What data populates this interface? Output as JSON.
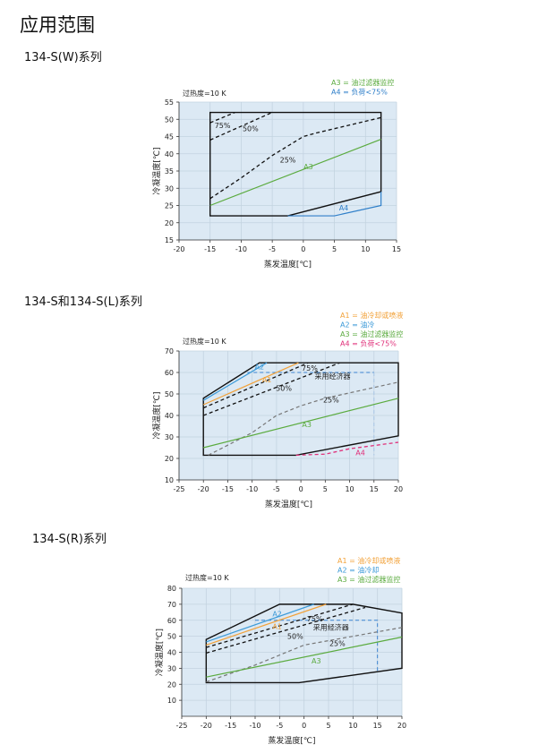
{
  "page_title": "应用范围",
  "sections": [
    {
      "heading": "134-S(W)系列"
    },
    {
      "heading": "134-S和134-S(L)系列"
    },
    {
      "heading": "134-S(R)系列"
    }
  ],
  "colors": {
    "plot_bg": "#dce9f4",
    "envelope": "#111111",
    "A1": "#f2a23a",
    "A2": "#3c9ad8",
    "A3": "#5bab3f",
    "A4_W": "#2f7fc9",
    "A4_L": "#e0307a",
    "dashed_black": "#111111",
    "dashed_gray": "#777777",
    "economizer": "#3c84d0"
  },
  "chart_data": [
    {
      "type": "line",
      "note": "过热度=10 K",
      "xlabel": "蒸发温度[℃]",
      "ylabel": "冷凝温度[℃]",
      "xlim": [
        -20,
        15
      ],
      "ylim": [
        15,
        55
      ],
      "xticks": [
        -20,
        -15,
        -10,
        -5,
        0,
        5,
        10,
        15
      ],
      "yticks": [
        15,
        20,
        25,
        30,
        35,
        40,
        45,
        50,
        55
      ],
      "grid": true,
      "legend_position": "top-right",
      "legend": [
        {
          "text": "A3 = 油过滤器监控",
          "color": "#5bab3f"
        },
        {
          "text": "A4 = 负荷<75%",
          "color": "#2f7fc9"
        }
      ],
      "series": [
        {
          "id": "envelope",
          "style": "envelope",
          "closed": true,
          "points": [
            [
              -15,
              22
            ],
            [
              -15,
              52
            ],
            [
              12.5,
              52
            ],
            [
              12.5,
              29
            ],
            [
              -2.5,
              22
            ]
          ]
        },
        {
          "id": "A4",
          "style": "A4_W",
          "points": [
            [
              -2.5,
              22
            ],
            [
              5,
              22
            ],
            [
              12.5,
              25
            ],
            [
              12.5,
              29
            ]
          ]
        },
        {
          "id": "A3",
          "style": "A3",
          "points": [
            [
              -15,
              25
            ],
            [
              12.5,
              44.2
            ]
          ]
        },
        {
          "id": "25%",
          "style": "dashed_black",
          "points": [
            [
              -15,
              27
            ],
            [
              -10,
              33
            ],
            [
              -5,
              39.5
            ],
            [
              0,
              45
            ],
            [
              2,
              46
            ],
            [
              12.5,
              50.5
            ]
          ]
        },
        {
          "id": "50%",
          "style": "dashed_black",
          "points": [
            [
              -15,
              44
            ],
            [
              -5,
              52
            ]
          ]
        },
        {
          "id": "75%",
          "style": "dashed_black",
          "points": [
            [
              -15,
              49
            ],
            [
              -11,
              52
            ]
          ]
        }
      ],
      "annotations": [
        {
          "text": "75%",
          "x": -13,
          "y": 47.5,
          "color": "#222222"
        },
        {
          "text": "50%",
          "x": -8.5,
          "y": 46.5,
          "color": "#222222"
        },
        {
          "text": "25%",
          "x": -2.5,
          "y": 37.5,
          "color": "#222222"
        },
        {
          "text": "A3",
          "x": 0.8,
          "y": 35.5,
          "color": "#5bab3f"
        },
        {
          "text": "A4",
          "x": 6.5,
          "y": 23.6,
          "color": "#2f7fc9"
        }
      ]
    },
    {
      "type": "line",
      "note": "过热度=10 K",
      "xlabel": "蒸发温度[℃]",
      "ylabel": "冷凝温度[℃]",
      "xlim": [
        -25,
        20
      ],
      "ylim": [
        10,
        70
      ],
      "xticks": [
        -25,
        -20,
        -15,
        -10,
        -5,
        0,
        5,
        10,
        15,
        20
      ],
      "yticks": [
        10,
        20,
        30,
        40,
        50,
        60,
        70
      ],
      "grid": true,
      "legend_position": "top-right",
      "legend": [
        {
          "text": "A1 = 油冷却或喷液",
          "color": "#f2a23a"
        },
        {
          "text": "A2 = 油冷",
          "color": "#3c9ad8"
        },
        {
          "text": "A3 = 油过滤器监控",
          "color": "#5bab3f"
        },
        {
          "text": "A4 = 负荷<75%",
          "color": "#e0307a"
        }
      ],
      "series": [
        {
          "id": "economizer",
          "style": "economizer",
          "points": [
            [
              -11,
              60
            ],
            [
              15,
              60
            ]
          ]
        },
        {
          "id": "economizer-limit",
          "style": "economizer_light",
          "points": [
            [
              15,
              60
            ],
            [
              15,
              21.5
            ]
          ]
        },
        {
          "id": "envelope",
          "style": "envelope",
          "closed": true,
          "points": [
            [
              -20,
              21.5
            ],
            [
              -20,
              48
            ],
            [
              -8.5,
              64.5
            ],
            [
              20,
              64.5
            ],
            [
              20,
              30.5
            ],
            [
              -1,
              21.5
            ]
          ]
        },
        {
          "id": "A2",
          "style": "A2",
          "points": [
            [
              -20,
              47
            ],
            [
              -7,
              64.5
            ]
          ]
        },
        {
          "id": "A1",
          "style": "A1",
          "points": [
            [
              -20,
              45
            ],
            [
              -0.5,
              64.5
            ]
          ]
        },
        {
          "id": "75%",
          "style": "dashed_black",
          "points": [
            [
              -20,
              43.5
            ],
            [
              1.5,
              64.5
            ]
          ]
        },
        {
          "id": "50%",
          "style": "dashed_black",
          "points": [
            [
              -20,
              40
            ],
            [
              8,
              64.5
            ]
          ]
        },
        {
          "id": "25%",
          "style": "dashed_gray",
          "points": [
            [
              -19,
              21.5
            ],
            [
              -10,
              32
            ],
            [
              -5,
              40
            ],
            [
              0,
              44.5
            ],
            [
              5,
              48
            ],
            [
              20,
              55.5
            ]
          ]
        },
        {
          "id": "A3",
          "style": "A3",
          "points": [
            [
              -20,
              25
            ],
            [
              20,
              48
            ]
          ]
        },
        {
          "id": "A4",
          "style": "A4_L_dashed",
          "points": [
            [
              -1,
              21.5
            ],
            [
              5,
              22
            ],
            [
              10,
              24.5
            ],
            [
              20,
              27.5
            ]
          ]
        }
      ],
      "annotations": [
        {
          "text": "A2",
          "x": -8.5,
          "y": 61.5,
          "color": "#3c9ad8"
        },
        {
          "text": "75%",
          "x": 1.8,
          "y": 60.8,
          "color": "#222222"
        },
        {
          "text": "A1",
          "x": -7,
          "y": 55.5,
          "color": "#f2a23a"
        },
        {
          "text": "采用经济器",
          "x": 6.5,
          "y": 57,
          "color": "#222222"
        },
        {
          "text": "50%",
          "x": -3.5,
          "y": 51.5,
          "color": "#222222"
        },
        {
          "text": "25%",
          "x": 6.2,
          "y": 46,
          "color": "#222222"
        },
        {
          "text": "A3",
          "x": 1.2,
          "y": 34.5,
          "color": "#5bab3f"
        },
        {
          "text": "A4",
          "x": 12.2,
          "y": 21.5,
          "color": "#e0307a"
        }
      ]
    },
    {
      "type": "line",
      "note": "过热度=10 K",
      "xlabel": "蒸发温度[℃]",
      "ylabel": "冷凝温度[℃]",
      "xlim": [
        -25,
        20
      ],
      "ylim": [
        0,
        80
      ],
      "xticks": [
        -25,
        -20,
        -15,
        -10,
        -5,
        0,
        5,
        10,
        15,
        20
      ],
      "yticks": [
        10,
        20,
        30,
        40,
        50,
        60,
        70,
        80
      ],
      "grid": true,
      "legend_position": "top-right",
      "legend": [
        {
          "text": "A1 = 油冷却或喷液",
          "color": "#f2a23a"
        },
        {
          "text": "A2 = 油冷却",
          "color": "#3c9ad8"
        },
        {
          "text": "A3 = 油过滤器监控",
          "color": "#5bab3f"
        }
      ],
      "series": [
        {
          "id": "economizer",
          "style": "economizer",
          "points": [
            [
              -10,
              60
            ],
            [
              15,
              60
            ],
            [
              15,
              28
            ]
          ]
        },
        {
          "id": "envelope",
          "style": "envelope",
          "closed": true,
          "points": [
            [
              -20,
              21
            ],
            [
              -20,
              48
            ],
            [
              -5,
              70
            ],
            [
              10,
              70
            ],
            [
              20,
              64.5
            ],
            [
              20,
              30
            ],
            [
              -1,
              21
            ]
          ]
        },
        {
          "id": "A2",
          "style": "A2",
          "points": [
            [
              -20,
              46.5
            ],
            [
              2,
              70
            ]
          ]
        },
        {
          "id": "A1",
          "style": "A1",
          "points": [
            [
              -20,
              44.5
            ],
            [
              4.5,
              70
            ]
          ]
        },
        {
          "id": "75%",
          "style": "dashed_black",
          "points": [
            [
              -20,
              43
            ],
            [
              10,
              70
            ]
          ]
        },
        {
          "id": "50%",
          "style": "dashed_black",
          "points": [
            [
              -20,
              39.5
            ],
            [
              12.5,
              68
            ]
          ]
        },
        {
          "id": "25%",
          "style": "dashed_gray",
          "points": [
            [
              -20,
              21.5
            ],
            [
              -10,
              32
            ],
            [
              0,
              44.5
            ],
            [
              20,
              55.5
            ]
          ]
        },
        {
          "id": "A3",
          "style": "A3",
          "points": [
            [
              -20,
              24.5
            ],
            [
              20,
              49.5
            ]
          ]
        }
      ],
      "annotations": [
        {
          "text": "A2",
          "x": -5.5,
          "y": 62.5,
          "color": "#3c9ad8"
        },
        {
          "text": "75%",
          "x": 2.2,
          "y": 59.2,
          "color": "#222222"
        },
        {
          "text": "A1",
          "x": -5.5,
          "y": 54.5,
          "color": "#f2a23a"
        },
        {
          "text": "采用经济器",
          "x": 5.5,
          "y": 54,
          "color": "#222222"
        },
        {
          "text": "50%",
          "x": -1.8,
          "y": 48.5,
          "color": "#222222"
        },
        {
          "text": "25%",
          "x": 6.8,
          "y": 44,
          "color": "#222222"
        },
        {
          "text": "A3",
          "x": 2.5,
          "y": 33,
          "color": "#5bab3f"
        }
      ]
    }
  ]
}
